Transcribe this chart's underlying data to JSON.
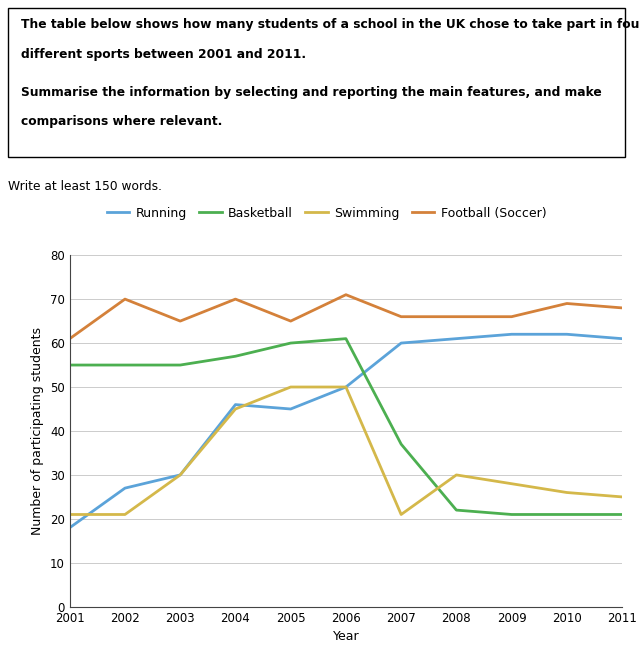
{
  "years": [
    2001,
    2002,
    2003,
    2004,
    2005,
    2006,
    2007,
    2008,
    2009,
    2010,
    2011
  ],
  "running": [
    18,
    27,
    30,
    46,
    45,
    50,
    60,
    61,
    62,
    62,
    61
  ],
  "basketball": [
    55,
    55,
    55,
    57,
    60,
    61,
    37,
    22,
    21,
    21,
    21
  ],
  "swimming": [
    21,
    21,
    30,
    45,
    50,
    50,
    21,
    30,
    28,
    26,
    25
  ],
  "football": [
    61,
    70,
    65,
    70,
    65,
    71,
    66,
    66,
    66,
    69,
    68
  ],
  "running_color": "#5ba3d9",
  "basketball_color": "#4caf50",
  "swimming_color": "#d4b84a",
  "football_color": "#d4813a",
  "legend_labels": [
    "Running",
    "Basketball",
    "Swimming",
    "Football (Soccer)"
  ],
  "ylabel": "Number of participating students",
  "xlabel": "Year",
  "ylim": [
    0,
    80
  ],
  "yticks": [
    0,
    10,
    20,
    30,
    40,
    50,
    60,
    70,
    80
  ],
  "textbox_line1": "The table below shows how many students of a school in the UK chose to take part in four",
  "textbox_line2": "different sports between 2001 and 2011.",
  "textbox_line3": "Summarise the information by selecting and reporting the main features, and make",
  "textbox_line4": "comparisons where relevant.",
  "subtext": "Write at least 150 words.",
  "background_color": "#ffffff",
  "line_width": 2.0
}
